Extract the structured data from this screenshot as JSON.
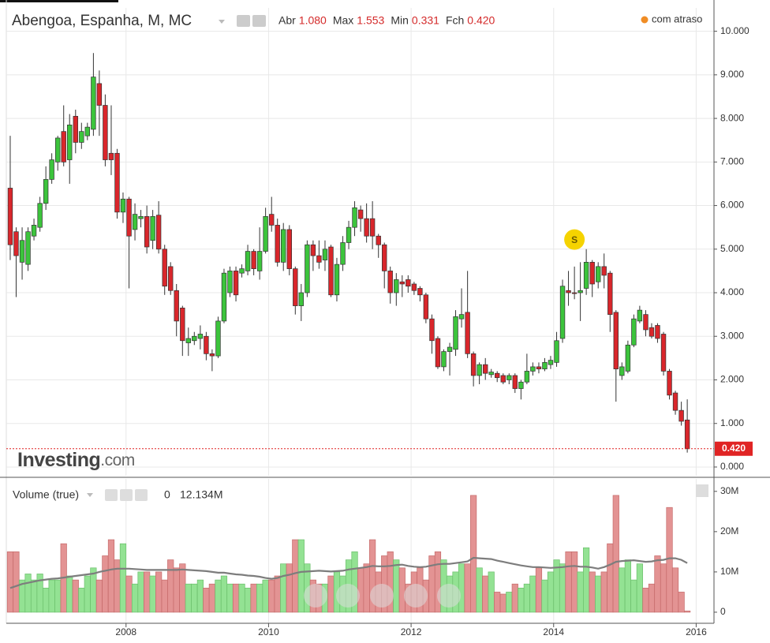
{
  "chart_data": [
    {
      "type": "candlestick",
      "title": "Abengoa, Espanha, M, MC",
      "summary": [
        {
          "name": "Abr",
          "value": 1.08,
          "label": "1.080"
        },
        {
          "name": "Max",
          "value": 1.553,
          "label": "1.553"
        },
        {
          "name": "Min",
          "value": 0.331,
          "label": "0.331"
        },
        {
          "name": "Fch",
          "value": 0.42,
          "label": "0.420"
        }
      ],
      "delay_note": "com atraso",
      "logo": {
        "brand": "Investing",
        "suffix": ".com"
      },
      "last_price": {
        "value": 0.42,
        "label": "0.420"
      },
      "annotations": [
        {
          "text": "S",
          "x": 2014.292,
          "y": 5.22
        }
      ],
      "up_color": "#3cc43c",
      "down_color": "#d9262b",
      "xlim": [
        2006.32,
        2016.25
      ],
      "xticks": [
        2008,
        2010,
        2012,
        2014,
        2016
      ],
      "ylim": [
        -0.2,
        10.5
      ],
      "yticks": [
        {
          "value": 0,
          "label": "0.000"
        },
        {
          "value": 1,
          "label": "1.000"
        },
        {
          "value": 2,
          "label": "2.000"
        },
        {
          "value": 3,
          "label": "3.000"
        },
        {
          "value": 4,
          "label": "4.000"
        },
        {
          "value": 5,
          "label": "5.000"
        },
        {
          "value": 6,
          "label": "6.000"
        },
        {
          "value": 7,
          "label": "7.000"
        },
        {
          "value": 8,
          "label": "8.000"
        },
        {
          "value": 9,
          "label": "9.000"
        },
        {
          "value": 10,
          "label": "10.000"
        }
      ],
      "grid": true,
      "x": [
        2006.375,
        2006.458,
        2006.542,
        2006.625,
        2006.708,
        2006.792,
        2006.875,
        2006.958,
        2007.042,
        2007.125,
        2007.208,
        2007.292,
        2007.375,
        2007.458,
        2007.542,
        2007.625,
        2007.708,
        2007.792,
        2007.875,
        2007.958,
        2008.042,
        2008.125,
        2008.208,
        2008.292,
        2008.375,
        2008.458,
        2008.542,
        2008.625,
        2008.708,
        2008.792,
        2008.875,
        2008.958,
        2009.042,
        2009.125,
        2009.208,
        2009.292,
        2009.375,
        2009.458,
        2009.542,
        2009.625,
        2009.708,
        2009.792,
        2009.875,
        2009.958,
        2010.042,
        2010.125,
        2010.208,
        2010.292,
        2010.375,
        2010.458,
        2010.542,
        2010.625,
        2010.708,
        2010.792,
        2010.875,
        2010.958,
        2011.042,
        2011.125,
        2011.208,
        2011.292,
        2011.375,
        2011.458,
        2011.542,
        2011.625,
        2011.708,
        2011.792,
        2011.875,
        2011.958,
        2012.042,
        2012.125,
        2012.208,
        2012.292,
        2012.375,
        2012.458,
        2012.542,
        2012.625,
        2012.708,
        2012.792,
        2012.875,
        2012.958,
        2013.042,
        2013.125,
        2013.208,
        2013.292,
        2013.375,
        2013.458,
        2013.542,
        2013.625,
        2013.708,
        2013.792,
        2013.875,
        2013.958,
        2014.042,
        2014.125,
        2014.208,
        2014.292,
        2014.375,
        2014.458,
        2014.542,
        2014.625,
        2014.708,
        2014.792,
        2014.875,
        2014.958,
        2015.042,
        2015.125,
        2015.208,
        2015.292,
        2015.375,
        2015.458,
        2015.542,
        2015.625,
        2015.708,
        2015.792,
        2015.875
      ],
      "open": [
        6.4,
        5.4,
        4.7,
        4.65,
        5.3,
        5.5,
        6.05,
        6.6,
        7.0,
        7.7,
        7.05,
        8.05,
        7.45,
        7.6,
        7.75,
        8.8,
        8.3,
        7.2,
        7.2,
        5.85,
        6.15,
        5.45,
        5.7,
        5.75,
        5.2,
        5.78,
        5.0,
        4.6,
        4.05,
        3.65,
        2.85,
        2.9,
        2.95,
        3.0,
        2.6,
        2.55,
        3.35,
        4.0,
        4.5,
        4.45,
        4.5,
        4.95,
        4.5,
        4.95,
        5.8,
        5.55,
        4.7,
        5.45,
        4.55,
        3.7,
        4.0,
        5.1,
        4.85,
        4.75,
        5.05,
        3.95,
        4.65,
        5.15,
        5.5,
        5.9,
        5.7,
        5.7,
        5.3,
        5.1,
        4.5,
        4.0,
        4.25,
        4.3,
        4.2,
        4.1,
        3.95,
        3.4,
        2.95,
        2.3,
        2.65,
        2.7,
        3.4,
        3.55,
        2.6,
        2.1,
        2.35,
        2.12,
        2.15,
        2.1,
        2.0,
        2.1,
        1.8,
        1.95,
        2.2,
        2.3,
        2.25,
        2.35,
        2.4,
        2.95,
        4.05,
        4.0,
        4.0,
        4.1,
        4.7,
        4.25,
        4.6,
        4.45,
        3.55,
        2.1,
        2.2,
        2.8,
        3.35,
        3.5,
        3.2,
        3.25,
        3.05,
        2.2,
        1.7,
        1.3,
        1.08
      ],
      "high": [
        7.6,
        5.5,
        5.5,
        5.5,
        5.7,
        6.2,
        6.9,
        7.2,
        7.6,
        8.3,
        8.1,
        8.2,
        7.9,
        7.9,
        9.5,
        9.1,
        8.55,
        8.3,
        7.3,
        6.3,
        6.2,
        6.05,
        5.9,
        6.0,
        5.9,
        6.1,
        5.1,
        4.7,
        4.2,
        3.7,
        3.2,
        3.1,
        3.25,
        3.1,
        2.7,
        3.45,
        4.55,
        4.6,
        4.6,
        4.65,
        5.1,
        5.0,
        5.5,
        5.95,
        6.2,
        5.7,
        5.6,
        5.55,
        4.6,
        4.2,
        5.2,
        5.2,
        5.2,
        5.2,
        5.1,
        4.8,
        5.3,
        5.65,
        6.1,
        6.0,
        6.05,
        6.1,
        5.35,
        5.15,
        4.6,
        4.45,
        4.4,
        4.4,
        4.25,
        4.15,
        4.0,
        3.5,
        3.0,
        2.7,
        2.85,
        3.6,
        4.1,
        4.5,
        2.65,
        2.4,
        2.5,
        2.25,
        2.2,
        2.15,
        2.15,
        2.15,
        2.0,
        2.6,
        2.4,
        2.4,
        2.5,
        2.55,
        3.1,
        4.3,
        4.5,
        4.6,
        4.7,
        5.0,
        4.75,
        4.7,
        4.9,
        4.5,
        3.6,
        2.4,
        2.9,
        3.5,
        3.7,
        3.6,
        3.3,
        3.3,
        3.1,
        2.25,
        1.75,
        1.5,
        1.553
      ],
      "low": [
        4.75,
        3.9,
        4.3,
        4.5,
        5.2,
        5.4,
        5.9,
        6.5,
        6.8,
        6.9,
        6.5,
        7.2,
        7.3,
        7.5,
        7.6,
        7.6,
        6.9,
        6.7,
        5.7,
        5.6,
        4.1,
        5.2,
        5.5,
        4.9,
        5.0,
        4.9,
        3.95,
        3.95,
        3.0,
        2.55,
        2.55,
        2.8,
        2.7,
        2.45,
        2.2,
        2.5,
        3.3,
        3.9,
        3.8,
        4.35,
        4.4,
        4.4,
        4.3,
        4.9,
        5.4,
        4.6,
        4.5,
        4.4,
        3.5,
        3.35,
        3.9,
        4.5,
        4.55,
        4.5,
        3.9,
        3.8,
        4.5,
        5.0,
        5.3,
        5.4,
        5.15,
        5.0,
        4.8,
        4.1,
        3.75,
        3.7,
        3.9,
        4.0,
        3.95,
        3.8,
        3.3,
        2.6,
        2.25,
        2.2,
        2.1,
        2.55,
        3.2,
        2.5,
        1.85,
        1.9,
        2.0,
        2.05,
        1.95,
        1.9,
        1.9,
        1.7,
        1.55,
        1.9,
        2.1,
        2.15,
        2.2,
        2.25,
        2.3,
        2.85,
        3.7,
        3.85,
        3.35,
        3.95,
        3.9,
        4.1,
        4.1,
        3.1,
        1.5,
        2.0,
        2.15,
        2.75,
        3.3,
        3.0,
        2.95,
        2.85,
        2.1,
        1.55,
        1.2,
        0.95,
        0.331
      ],
      "close": [
        5.1,
        4.85,
        5.2,
        5.4,
        5.55,
        6.05,
        6.6,
        7.05,
        7.55,
        7.0,
        7.85,
        7.45,
        7.7,
        7.8,
        8.95,
        8.3,
        7.05,
        7.05,
        5.85,
        6.15,
        5.3,
        5.8,
        5.75,
        5.05,
        5.75,
        5.0,
        4.15,
        4.05,
        3.35,
        2.9,
        2.95,
        3.0,
        3.05,
        2.6,
        2.55,
        3.35,
        4.45,
        4.5,
        3.95,
        4.55,
        4.95,
        4.55,
        4.95,
        5.75,
        5.55,
        4.7,
        5.45,
        4.55,
        3.7,
        4.0,
        5.1,
        4.85,
        4.7,
        5.0,
        3.95,
        4.65,
        5.15,
        5.5,
        5.95,
        5.7,
        5.3,
        5.3,
        5.1,
        4.5,
        4.0,
        4.3,
        4.2,
        4.15,
        4.05,
        3.95,
        3.4,
        2.9,
        2.3,
        2.65,
        2.75,
        3.45,
        3.5,
        2.6,
        2.1,
        2.35,
        2.15,
        2.18,
        2.05,
        1.95,
        2.1,
        1.8,
        1.95,
        2.2,
        2.3,
        2.25,
        2.4,
        2.45,
        2.9,
        4.15,
        4.0,
        3.98,
        4.05,
        4.7,
        4.2,
        4.6,
        4.4,
        3.5,
        2.25,
        2.3,
        2.8,
        3.4,
        3.6,
        3.15,
        3.0,
        2.95,
        2.2,
        1.65,
        1.3,
        1.05,
        0.42
      ]
    },
    {
      "type": "bar",
      "title": "Volume (true)",
      "readout": {
        "change": 0,
        "value": 12.134,
        "label": "12.134M"
      },
      "up_color": "#93e293",
      "down_color": "#e39393",
      "ma_color": "#7d7d7d",
      "ylim": [
        -2.75,
        32.9
      ],
      "yticks": [
        0,
        {
          "value": 10,
          "label": "10M"
        },
        {
          "value": 20,
          "label": "20M"
        },
        {
          "value": 30,
          "label": "30M"
        }
      ],
      "values": [
        15,
        15,
        8,
        9.5,
        8,
        9.5,
        6,
        8,
        8,
        17,
        9,
        8,
        6,
        9,
        11,
        8,
        14,
        18,
        13,
        17,
        9,
        7,
        10,
        10,
        9,
        10,
        8,
        13,
        11,
        12,
        7,
        7,
        8,
        6,
        7,
        8,
        9,
        7,
        7,
        7,
        6,
        7,
        7,
        8,
        8,
        9,
        12,
        12,
        18,
        18,
        12,
        8,
        7,
        7,
        9,
        10,
        9,
        13,
        15,
        11,
        12,
        18,
        10,
        14,
        15,
        13,
        11,
        7,
        10,
        11,
        8,
        14,
        15,
        13,
        9,
        10,
        12,
        12,
        29,
        11,
        9,
        10,
        5,
        4.5,
        5,
        7,
        6,
        7,
        9,
        11,
        8,
        10,
        13,
        12,
        15,
        15,
        10,
        16,
        10,
        9,
        10,
        17,
        29,
        11,
        13,
        8,
        12,
        6,
        7,
        14,
        12,
        26,
        11,
        5,
        0.3
      ],
      "moving_average": [
        6,
        6.5,
        7,
        7.3,
        7.6,
        7.9,
        8.1,
        8.3,
        8.4,
        8.6,
        8.8,
        9,
        9.2,
        9.4,
        9.6,
        10,
        10.3,
        10.6,
        10.8,
        10.8,
        10.8,
        10.7,
        10.6,
        10.5,
        10.5,
        10.5,
        10.5,
        10.5,
        10.5,
        10.6,
        10.5,
        10.4,
        10.3,
        10.2,
        10,
        9.8,
        9.8,
        9.6,
        9.4,
        9.3,
        9.1,
        9,
        8.8,
        8.5,
        8.3,
        8.5,
        9,
        9.3,
        9.7,
        10,
        10.1,
        10.2,
        10.3,
        10.2,
        10.1,
        10.2,
        10.3,
        10.6,
        10.8,
        11,
        11.2,
        11.5,
        11.4,
        11.4,
        11.5,
        11.7,
        11.8,
        11.5,
        11.3,
        11.2,
        11.3,
        11.6,
        11.9,
        12,
        12,
        12.2,
        12.4,
        12.6,
        13.5,
        13.4,
        13.3,
        13.2,
        12.8,
        12.5,
        12.2,
        11.9,
        11.6,
        11.4,
        11.2,
        11.2,
        11.1,
        11,
        11.1,
        11.2,
        11.4,
        11.5,
        11.3,
        11.3,
        11.1,
        10.8,
        11.2,
        11.8,
        12.5,
        12.7,
        12.8,
        12.9,
        12.7,
        12.5,
        12.6,
        12.9,
        13,
        13.4,
        13.4,
        13,
        12.2
      ]
    }
  ]
}
